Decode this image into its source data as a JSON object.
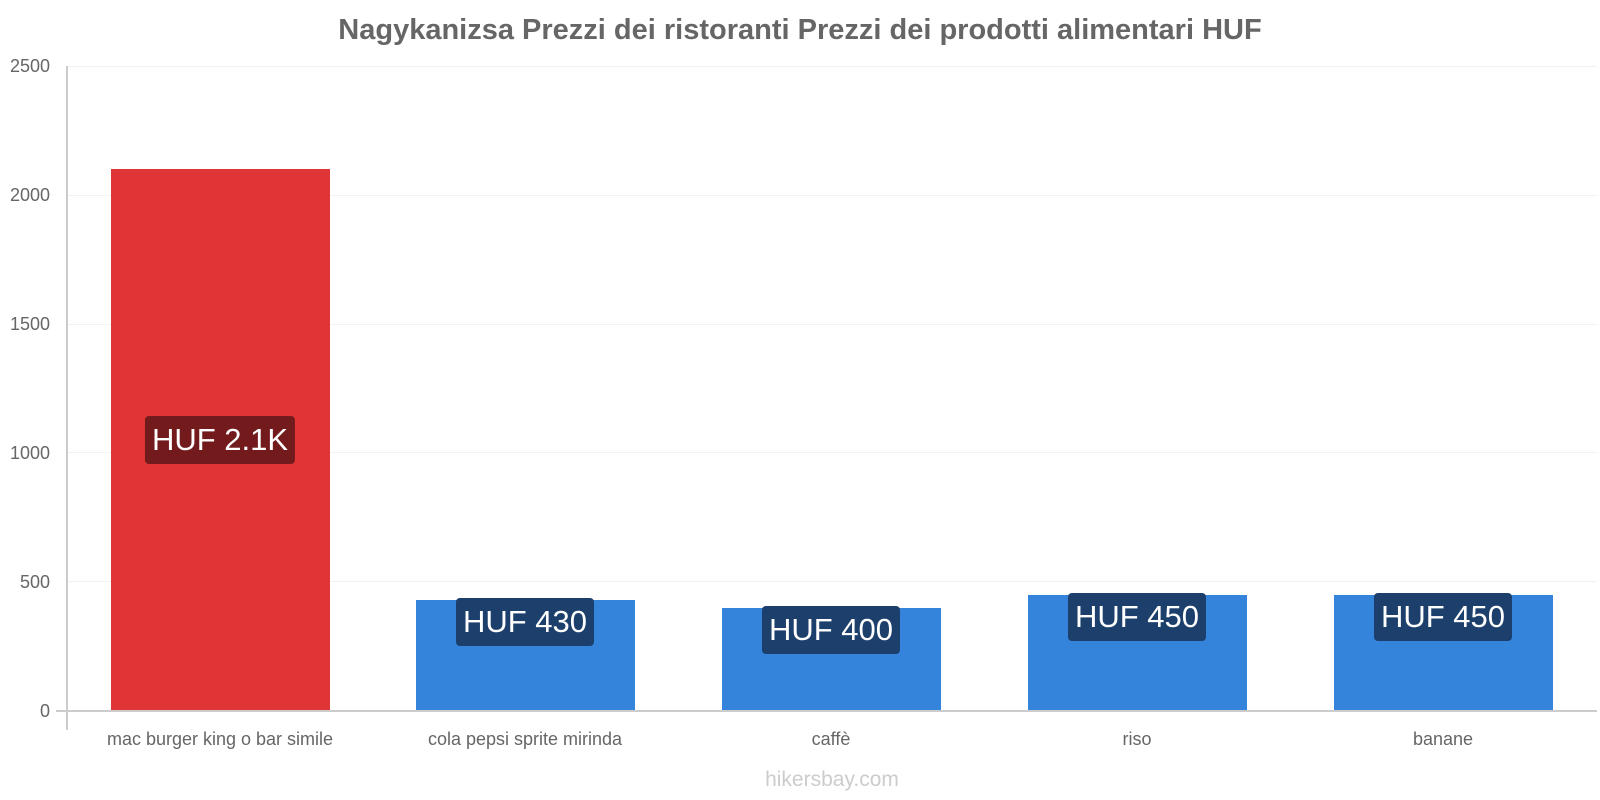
{
  "chart_data": {
    "type": "bar",
    "title": "Nagykanizsa Prezzi dei ristoranti Prezzi dei prodotti alimentari HUF",
    "categories": [
      "mac burger king o bar simile",
      "cola pepsi sprite mirinda",
      "caffè",
      "riso",
      "banane"
    ],
    "values": [
      2100,
      430,
      400,
      450,
      450
    ],
    "value_labels": [
      "HUF 2.1K",
      "HUF 430",
      "HUF 400",
      "HUF 450",
      "HUF 450"
    ],
    "bar_colors": [
      "#e03537",
      "#3584dc",
      "#3584dc",
      "#3584dc",
      "#3584dc"
    ],
    "label_colors": [
      "#731b1c",
      "#1c3f6c",
      "#1c3f6c",
      "#1c3f6c",
      "#1c3f6c"
    ],
    "xlabel": "",
    "ylabel": "",
    "ylim": [
      0,
      2500
    ],
    "yticks": [
      "0",
      "500",
      "1000",
      "1500",
      "2000",
      "2500"
    ],
    "grid": true,
    "legend": null
  },
  "footer": {
    "watermark": "hikersbay.com"
  }
}
